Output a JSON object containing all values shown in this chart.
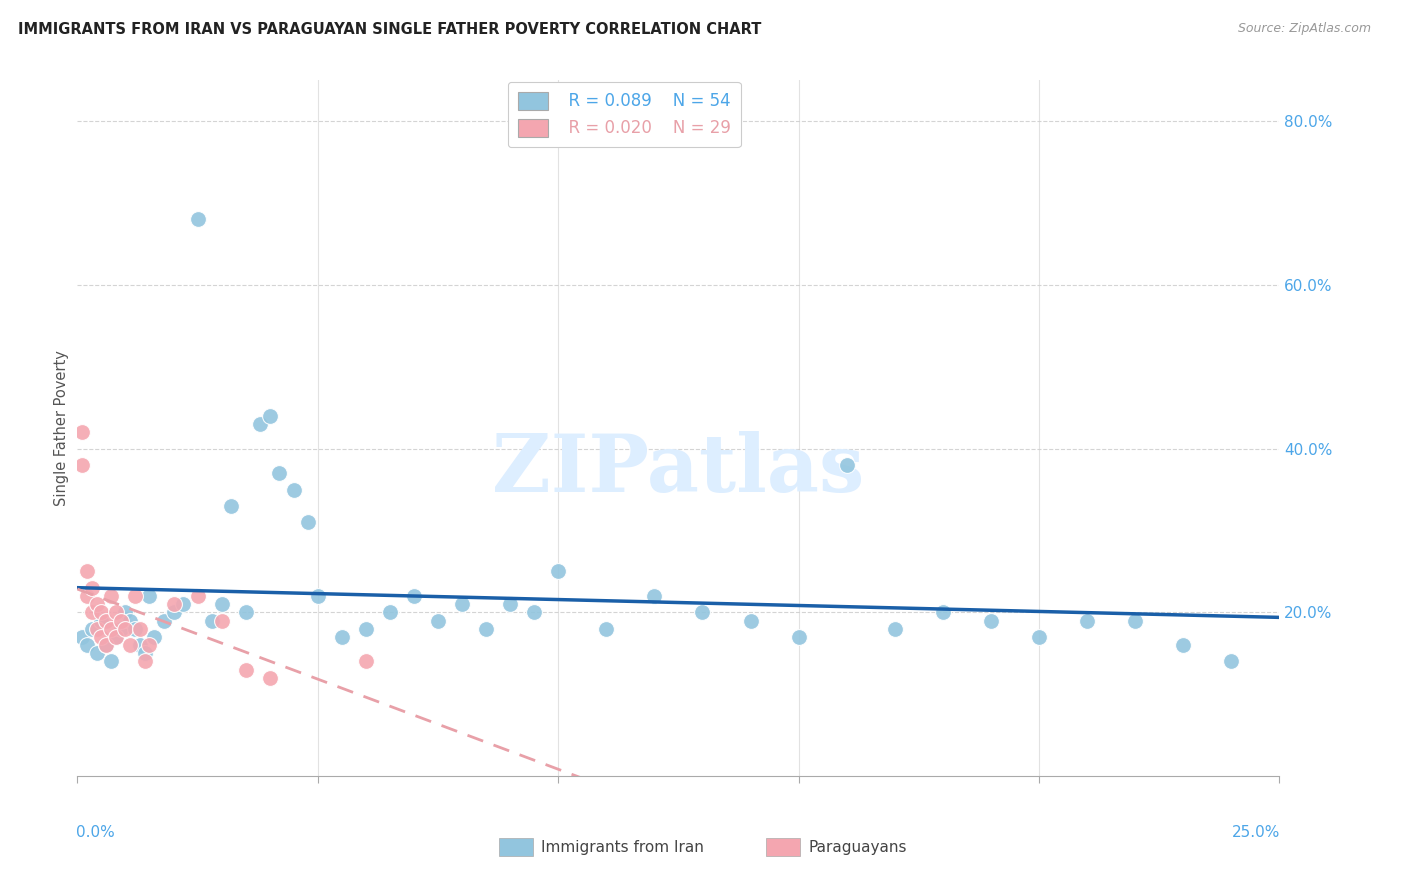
{
  "title": "IMMIGRANTS FROM IRAN VS PARAGUAYAN SINGLE FATHER POVERTY CORRELATION CHART",
  "source": "Source: ZipAtlas.com",
  "ylabel": "Single Father Poverty",
  "legend1_label": "Immigrants from Iran",
  "legend2_label": "Paraguayans",
  "legend1_R": "R = 0.089",
  "legend1_N": "N = 54",
  "legend2_R": "R = 0.020",
  "legend2_N": "N = 29",
  "color_blue": "#92c5de",
  "color_pink": "#f4a6b0",
  "color_blue_line": "#1a5fa8",
  "color_pink_line": "#e8a0a8",
  "color_axis_text": "#4da6e8",
  "xlim": [
    0.0,
    0.25
  ],
  "ylim": [
    0.0,
    0.85
  ],
  "iran_x": [
    0.001,
    0.002,
    0.003,
    0.004,
    0.005,
    0.006,
    0.007,
    0.008,
    0.009,
    0.01,
    0.011,
    0.012,
    0.013,
    0.014,
    0.015,
    0.016,
    0.018,
    0.02,
    0.022,
    0.025,
    0.028,
    0.03,
    0.032,
    0.035,
    0.038,
    0.04,
    0.042,
    0.045,
    0.048,
    0.05,
    0.055,
    0.06,
    0.065,
    0.07,
    0.075,
    0.08,
    0.085,
    0.09,
    0.095,
    0.1,
    0.11,
    0.12,
    0.13,
    0.14,
    0.15,
    0.16,
    0.17,
    0.18,
    0.19,
    0.2,
    0.21,
    0.22,
    0.23,
    0.24
  ],
  "iran_y": [
    0.17,
    0.16,
    0.18,
    0.15,
    0.19,
    0.16,
    0.14,
    0.17,
    0.18,
    0.2,
    0.19,
    0.18,
    0.16,
    0.15,
    0.22,
    0.17,
    0.19,
    0.2,
    0.21,
    0.68,
    0.19,
    0.21,
    0.33,
    0.2,
    0.43,
    0.44,
    0.37,
    0.35,
    0.31,
    0.22,
    0.17,
    0.18,
    0.2,
    0.22,
    0.19,
    0.21,
    0.18,
    0.21,
    0.2,
    0.25,
    0.18,
    0.22,
    0.2,
    0.19,
    0.17,
    0.38,
    0.18,
    0.2,
    0.19,
    0.17,
    0.19,
    0.19,
    0.16,
    0.14
  ],
  "para_x": [
    0.001,
    0.001,
    0.002,
    0.002,
    0.003,
    0.003,
    0.004,
    0.004,
    0.005,
    0.005,
    0.006,
    0.006,
    0.007,
    0.007,
    0.008,
    0.008,
    0.009,
    0.01,
    0.011,
    0.012,
    0.013,
    0.014,
    0.015,
    0.02,
    0.025,
    0.03,
    0.035,
    0.04,
    0.06
  ],
  "para_y": [
    0.42,
    0.38,
    0.25,
    0.22,
    0.23,
    0.2,
    0.21,
    0.18,
    0.2,
    0.17,
    0.19,
    0.16,
    0.22,
    0.18,
    0.2,
    0.17,
    0.19,
    0.18,
    0.16,
    0.22,
    0.18,
    0.14,
    0.16,
    0.21,
    0.22,
    0.19,
    0.13,
    0.12,
    0.14
  ],
  "background_color": "#ffffff",
  "grid_color": "#d0d0d0",
  "watermark_text": "ZIPatlas",
  "watermark_color": "#ddeeff"
}
